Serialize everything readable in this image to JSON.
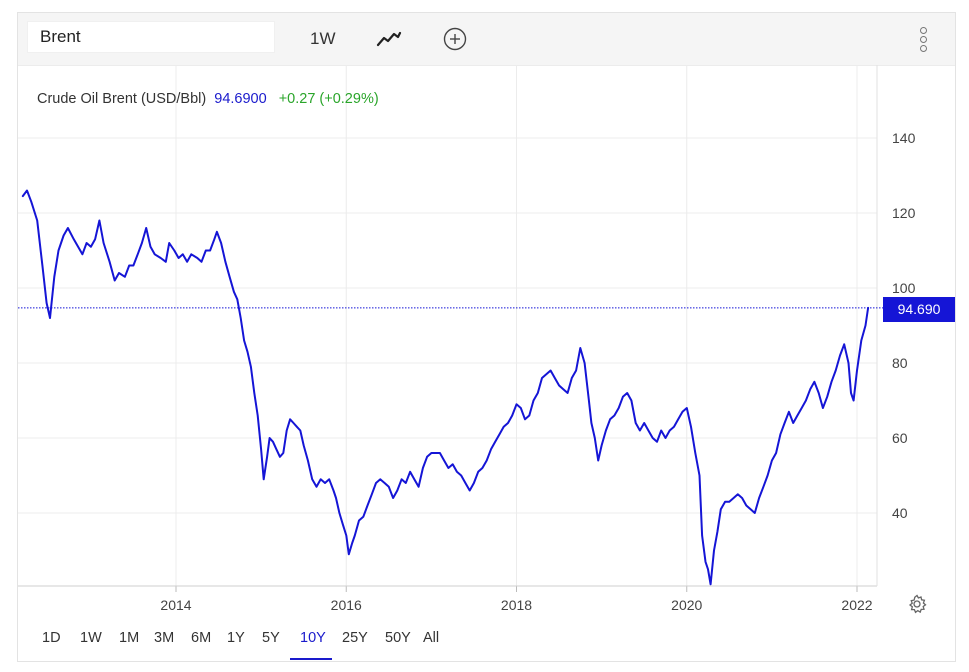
{
  "toolbar": {
    "symbol": "Brent",
    "interval": "1W",
    "chart_type_icon": "line-chart-icon",
    "add_icon": "plus-circle-icon",
    "menu_icon": "vertical-dots-icon"
  },
  "legend": {
    "name": "Crude Oil Brent (USD/Bbl)",
    "price": "94.6900",
    "change": "+0.27 (+0.29%)"
  },
  "last_price_label": "94.690",
  "range_buttons": [
    "1D",
    "1W",
    "1M",
    "3M",
    "6M",
    "1Y",
    "5Y",
    "10Y",
    "25Y",
    "50Y",
    "All"
  ],
  "active_range": "10Y",
  "colors": {
    "line": "#1515d6",
    "positive": "#2aa52a",
    "grid": "#ececec",
    "price_tag": "#1515d6"
  },
  "chart_data": {
    "type": "line",
    "title": "Crude Oil Brent (USD/Bbl)",
    "xlabel": "",
    "ylabel": "",
    "x_ticks": [
      "2014",
      "2016",
      "2018",
      "2020",
      "2022"
    ],
    "y_ticks": [
      40,
      60,
      80,
      100,
      120,
      140
    ],
    "xlim": [
      2012.2,
      2022.3
    ],
    "ylim": [
      20,
      155
    ],
    "grid": true,
    "last_value": 94.69,
    "series": [
      {
        "values": [
          [
            2012.2,
            124.5
          ],
          [
            2012.25,
            126
          ],
          [
            2012.3,
            123
          ],
          [
            2012.37,
            118
          ],
          [
            2012.43,
            106
          ],
          [
            2012.48,
            96
          ],
          [
            2012.52,
            92
          ],
          [
            2012.57,
            103
          ],
          [
            2012.62,
            110
          ],
          [
            2012.68,
            114
          ],
          [
            2012.73,
            116
          ],
          [
            2012.8,
            113
          ],
          [
            2012.85,
            111
          ],
          [
            2012.9,
            109
          ],
          [
            2012.95,
            112
          ],
          [
            2013.0,
            111
          ],
          [
            2013.05,
            113
          ],
          [
            2013.1,
            118
          ],
          [
            2013.15,
            112
          ],
          [
            2013.22,
            107
          ],
          [
            2013.28,
            102
          ],
          [
            2013.33,
            104
          ],
          [
            2013.4,
            103
          ],
          [
            2013.45,
            106
          ],
          [
            2013.5,
            106
          ],
          [
            2013.55,
            109
          ],
          [
            2013.6,
            112
          ],
          [
            2013.65,
            116
          ],
          [
            2013.7,
            111
          ],
          [
            2013.75,
            109
          ],
          [
            2013.82,
            108
          ],
          [
            2013.88,
            107
          ],
          [
            2013.92,
            112
          ],
          [
            2013.98,
            110
          ],
          [
            2014.03,
            108
          ],
          [
            2014.08,
            109
          ],
          [
            2014.13,
            107
          ],
          [
            2014.18,
            109
          ],
          [
            2014.25,
            108
          ],
          [
            2014.3,
            107
          ],
          [
            2014.35,
            110
          ],
          [
            2014.4,
            110
          ],
          [
            2014.45,
            113
          ],
          [
            2014.48,
            115
          ],
          [
            2014.53,
            112
          ],
          [
            2014.58,
            107
          ],
          [
            2014.63,
            103
          ],
          [
            2014.68,
            99
          ],
          [
            2014.72,
            97
          ],
          [
            2014.76,
            92
          ],
          [
            2014.8,
            86
          ],
          [
            2014.84,
            83
          ],
          [
            2014.88,
            79
          ],
          [
            2014.92,
            72
          ],
          [
            2014.96,
            66
          ],
          [
            2015.0,
            57
          ],
          [
            2015.03,
            49
          ],
          [
            2015.07,
            55
          ],
          [
            2015.1,
            60
          ],
          [
            2015.14,
            59
          ],
          [
            2015.18,
            57
          ],
          [
            2015.22,
            55
          ],
          [
            2015.26,
            56
          ],
          [
            2015.3,
            62
          ],
          [
            2015.34,
            65
          ],
          [
            2015.38,
            64
          ],
          [
            2015.42,
            63
          ],
          [
            2015.46,
            62
          ],
          [
            2015.5,
            58
          ],
          [
            2015.55,
            54
          ],
          [
            2015.6,
            49
          ],
          [
            2015.65,
            47
          ],
          [
            2015.7,
            49
          ],
          [
            2015.75,
            48
          ],
          [
            2015.8,
            49
          ],
          [
            2015.85,
            46
          ],
          [
            2015.88,
            44
          ],
          [
            2015.92,
            40
          ],
          [
            2015.96,
            37
          ],
          [
            2016.0,
            34
          ],
          [
            2016.03,
            29
          ],
          [
            2016.07,
            32
          ],
          [
            2016.1,
            34
          ],
          [
            2016.15,
            38
          ],
          [
            2016.2,
            39
          ],
          [
            2016.25,
            42
          ],
          [
            2016.3,
            45
          ],
          [
            2016.35,
            48
          ],
          [
            2016.4,
            49
          ],
          [
            2016.45,
            48
          ],
          [
            2016.5,
            47
          ],
          [
            2016.55,
            44
          ],
          [
            2016.6,
            46
          ],
          [
            2016.65,
            49
          ],
          [
            2016.7,
            48
          ],
          [
            2016.75,
            51
          ],
          [
            2016.8,
            49
          ],
          [
            2016.85,
            47
          ],
          [
            2016.9,
            52
          ],
          [
            2016.95,
            55
          ],
          [
            2017.0,
            56
          ],
          [
            2017.05,
            56
          ],
          [
            2017.1,
            56
          ],
          [
            2017.15,
            54
          ],
          [
            2017.2,
            52
          ],
          [
            2017.25,
            53
          ],
          [
            2017.3,
            51
          ],
          [
            2017.35,
            50
          ],
          [
            2017.4,
            48
          ],
          [
            2017.45,
            46
          ],
          [
            2017.5,
            48
          ],
          [
            2017.55,
            51
          ],
          [
            2017.6,
            52
          ],
          [
            2017.65,
            54
          ],
          [
            2017.7,
            57
          ],
          [
            2017.75,
            59
          ],
          [
            2017.8,
            61
          ],
          [
            2017.85,
            63
          ],
          [
            2017.9,
            64
          ],
          [
            2017.95,
            66
          ],
          [
            2018.0,
            69
          ],
          [
            2018.05,
            68
          ],
          [
            2018.1,
            65
          ],
          [
            2018.15,
            66
          ],
          [
            2018.2,
            70
          ],
          [
            2018.25,
            72
          ],
          [
            2018.3,
            76
          ],
          [
            2018.35,
            77
          ],
          [
            2018.4,
            78
          ],
          [
            2018.45,
            76
          ],
          [
            2018.5,
            74
          ],
          [
            2018.55,
            73
          ],
          [
            2018.6,
            72
          ],
          [
            2018.65,
            76
          ],
          [
            2018.7,
            78
          ],
          [
            2018.75,
            84
          ],
          [
            2018.8,
            80
          ],
          [
            2018.85,
            70
          ],
          [
            2018.88,
            64
          ],
          [
            2018.92,
            60
          ],
          [
            2018.96,
            54
          ],
          [
            2019.0,
            58
          ],
          [
            2019.05,
            62
          ],
          [
            2019.1,
            65
          ],
          [
            2019.15,
            66
          ],
          [
            2019.2,
            68
          ],
          [
            2019.25,
            71
          ],
          [
            2019.3,
            72
          ],
          [
            2019.35,
            70
          ],
          [
            2019.4,
            64
          ],
          [
            2019.45,
            62
          ],
          [
            2019.5,
            64
          ],
          [
            2019.55,
            62
          ],
          [
            2019.6,
            60
          ],
          [
            2019.65,
            59
          ],
          [
            2019.7,
            62
          ],
          [
            2019.75,
            60
          ],
          [
            2019.8,
            62
          ],
          [
            2019.85,
            63
          ],
          [
            2019.9,
            65
          ],
          [
            2019.95,
            67
          ],
          [
            2020.0,
            68
          ],
          [
            2020.05,
            63
          ],
          [
            2020.1,
            56
          ],
          [
            2020.15,
            50
          ],
          [
            2020.18,
            34
          ],
          [
            2020.22,
            27
          ],
          [
            2020.25,
            25
          ],
          [
            2020.28,
            21
          ],
          [
            2020.32,
            30
          ],
          [
            2020.36,
            35
          ],
          [
            2020.4,
            41
          ],
          [
            2020.45,
            43
          ],
          [
            2020.5,
            43
          ],
          [
            2020.55,
            44
          ],
          [
            2020.6,
            45
          ],
          [
            2020.65,
            44
          ],
          [
            2020.7,
            42
          ],
          [
            2020.75,
            41
          ],
          [
            2020.8,
            40
          ],
          [
            2020.85,
            44
          ],
          [
            2020.9,
            47
          ],
          [
            2020.95,
            50
          ],
          [
            2021.0,
            54
          ],
          [
            2021.05,
            56
          ],
          [
            2021.1,
            61
          ],
          [
            2021.15,
            64
          ],
          [
            2021.2,
            67
          ],
          [
            2021.25,
            64
          ],
          [
            2021.3,
            66
          ],
          [
            2021.35,
            68
          ],
          [
            2021.4,
            70
          ],
          [
            2021.45,
            73
          ],
          [
            2021.5,
            75
          ],
          [
            2021.55,
            72
          ],
          [
            2021.6,
            68
          ],
          [
            2021.65,
            71
          ],
          [
            2021.7,
            75
          ],
          [
            2021.75,
            78
          ],
          [
            2021.8,
            82
          ],
          [
            2021.85,
            85
          ],
          [
            2021.9,
            80
          ],
          [
            2021.93,
            72
          ],
          [
            2021.96,
            70
          ],
          [
            2022.0,
            78
          ],
          [
            2022.05,
            86
          ],
          [
            2022.1,
            90
          ],
          [
            2022.13,
            94.69
          ]
        ]
      }
    ]
  }
}
